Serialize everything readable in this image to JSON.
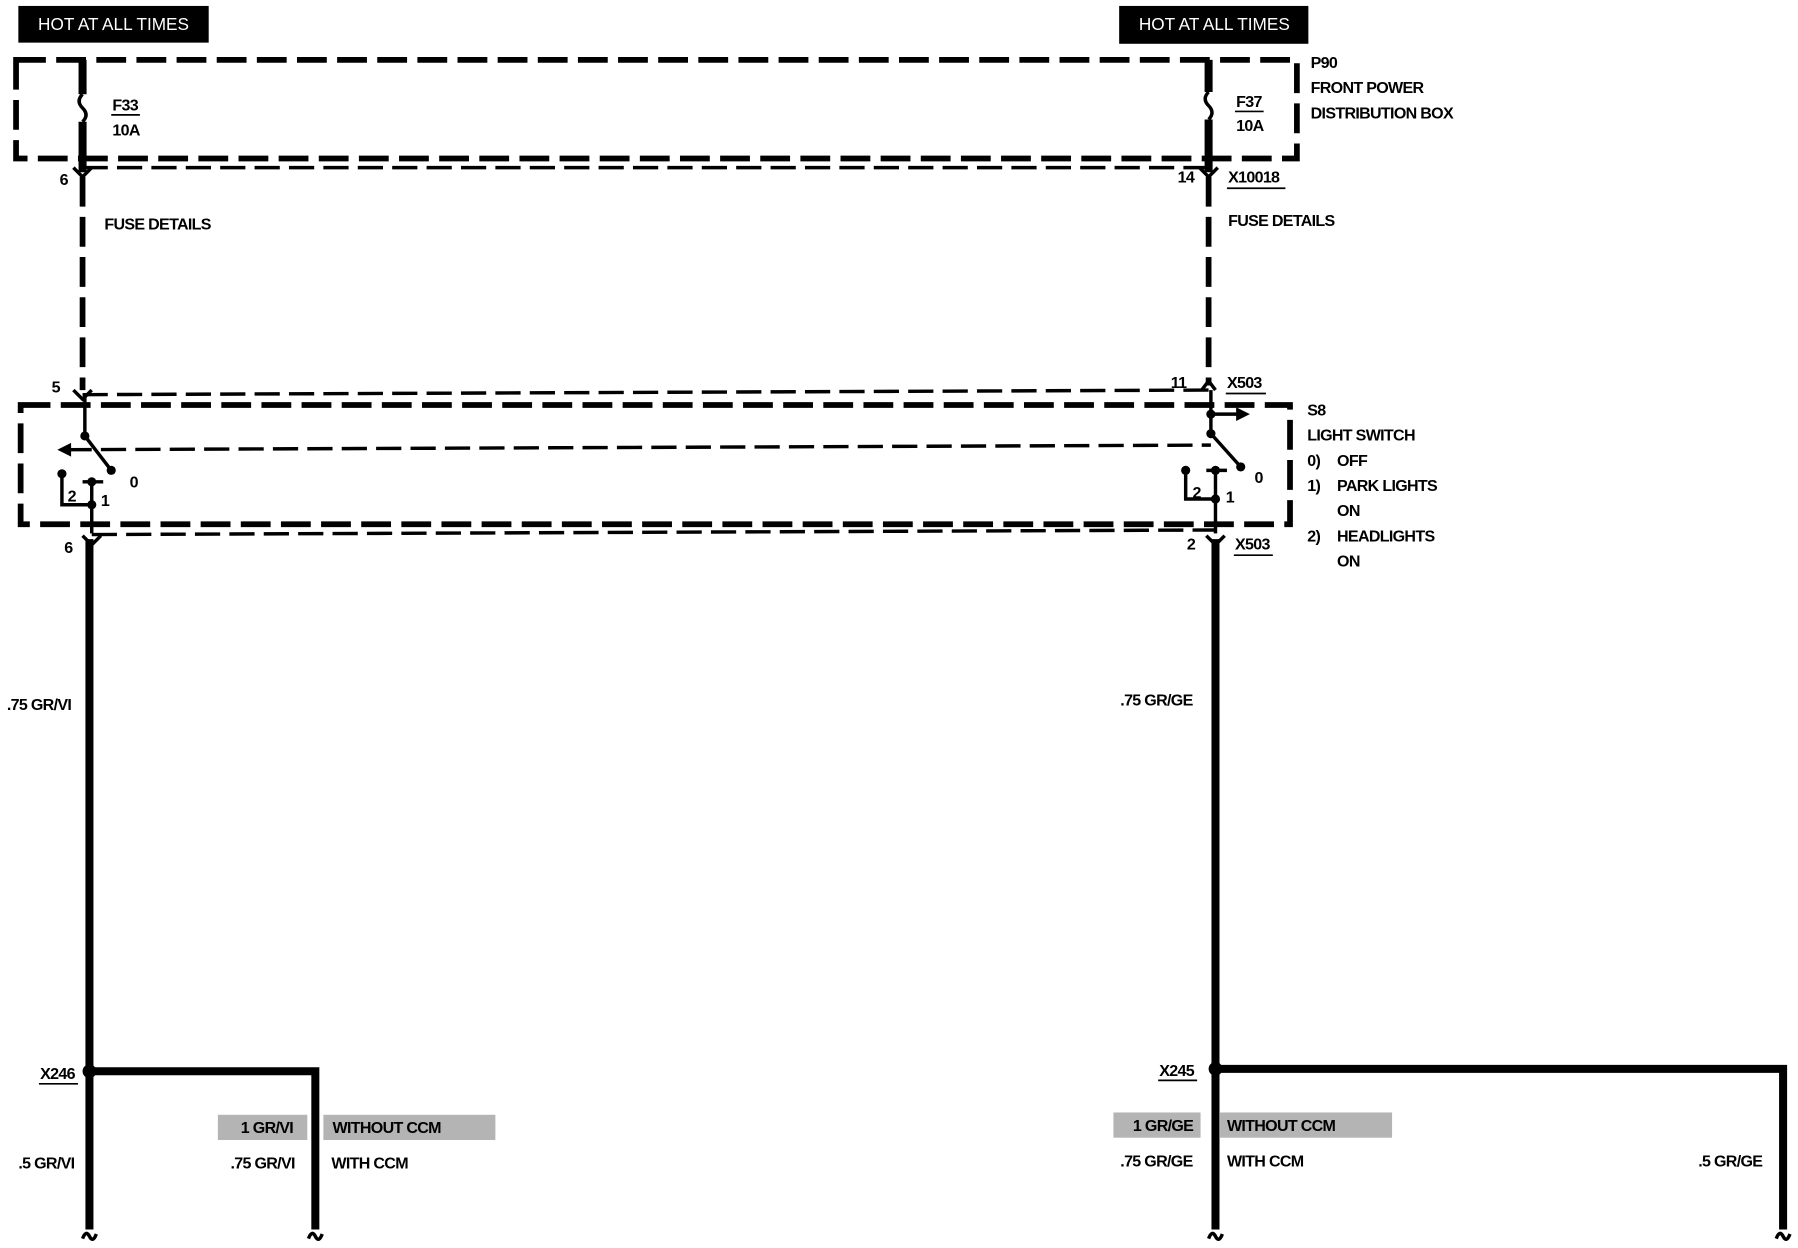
{
  "banners": {
    "left": "HOT AT ALL TIMES",
    "right": "HOT AT ALL TIMES"
  },
  "fuse_box": {
    "id": "P90",
    "name_line1": "FRONT POWER",
    "name_line2": "DISTRIBUTION BOX"
  },
  "fuses": [
    {
      "id": "F33",
      "rating": "10A",
      "out_pin": "6",
      "details": "FUSE DETAILS"
    },
    {
      "id": "F37",
      "rating": "10A",
      "out_pin": "14",
      "connector": "X10018",
      "details": "FUSE DETAILS"
    }
  ],
  "switch": {
    "id": "S8",
    "name": "LIGHT SWITCH",
    "positions": [
      {
        "num": "0)",
        "label": "OFF"
      },
      {
        "num": "1)",
        "label": "PARK LIGHTS",
        "label2": "ON"
      },
      {
        "num": "2)",
        "label": "HEADLIGHTS",
        "label2": "ON"
      }
    ],
    "left": {
      "in_pin": "5",
      "out_pin": "6",
      "contact_0": "0",
      "contact_1": "1",
      "contact_2": "2"
    },
    "right": {
      "in_pin": "11",
      "in_connector": "X503",
      "out_pin": "2",
      "out_connector": "X503",
      "contact_0": "0",
      "contact_1": "1",
      "contact_2": "2"
    }
  },
  "wires": {
    "left_main": ".75 GR/VI",
    "right_main": ".75 GR/GE",
    "left_splice": "X246",
    "right_splice": "X245",
    "left_branch_a": ".5 GR/VI",
    "left_branch_b_without": "1 GR/VI",
    "left_branch_b_with": ".75 GR/VI",
    "right_branch_a_without": "1 GR/GE",
    "right_branch_a_with": ".75 GR/GE",
    "right_branch_b": ".5 GR/GE",
    "without_ccm": "WITHOUT CCM",
    "with_ccm": "WITH CCM"
  },
  "colors": {
    "line": "#000000",
    "banner_bg": "#000000",
    "banner_text": "#ffffff",
    "option_shade": "#b4b4b4"
  }
}
